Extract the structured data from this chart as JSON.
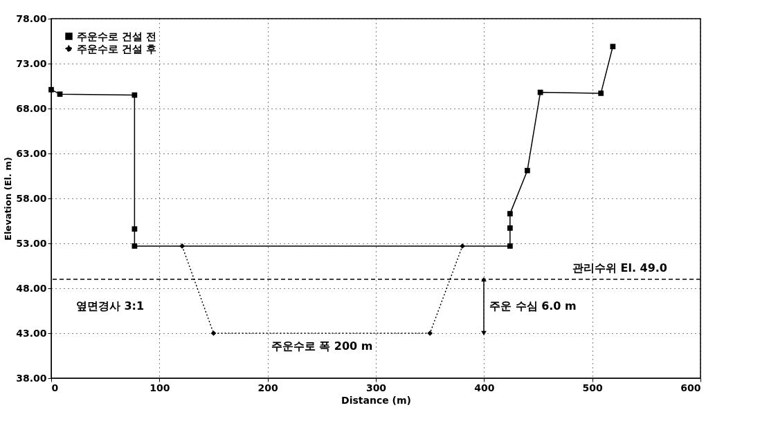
{
  "chart_data": {
    "type": "line",
    "xlabel": "Distance (m)",
    "ylabel": "Elevation (El. m)",
    "xlim": [
      0,
      600
    ],
    "xticks": [
      0,
      100,
      200,
      300,
      400,
      500,
      600
    ],
    "ylim": [
      38,
      78
    ],
    "yticks": [
      {
        "value": 38,
        "label": "38.00"
      },
      {
        "value": 43,
        "label": "43.00"
      },
      {
        "value": 48,
        "label": "48.00"
      },
      {
        "value": 53,
        "label": "53.00"
      },
      {
        "value": 58,
        "label": "58.00"
      },
      {
        "value": 63,
        "label": "63.00"
      },
      {
        "value": 68,
        "label": "68.00"
      },
      {
        "value": 73,
        "label": "73.00"
      },
      {
        "value": 78,
        "label": "78.00"
      }
    ],
    "grid": true,
    "legend": "top left",
    "series": [
      {
        "name": "주운수로 건설 전",
        "color": "#000000",
        "marker": "square",
        "line_style": "solid",
        "x": [
          0,
          8,
          77,
          77,
          77,
          424,
          424,
          424,
          440,
          452,
          508,
          519
        ],
        "values": [
          70.1,
          69.6,
          69.5,
          54.6,
          52.7,
          52.7,
          54.7,
          56.3,
          61.1,
          69.8,
          69.7,
          74.9
        ]
      },
      {
        "name": "주운수로 건설 후",
        "color": "#000000",
        "marker": "diamond",
        "line_style": "dotted",
        "x": [
          121,
          150,
          350,
          380
        ],
        "values": [
          52.7,
          43,
          43,
          52.7
        ]
      }
    ],
    "ref_lines": [
      {
        "axis": "y",
        "value": 49,
        "label": "관리수위 El. 49.0",
        "line_style": "dashed",
        "color": "#000000"
      }
    ],
    "annotations": [
      "옆면경사 3:1",
      "주운수로 폭 200 m",
      "주운 수심 6.0 m"
    ]
  }
}
